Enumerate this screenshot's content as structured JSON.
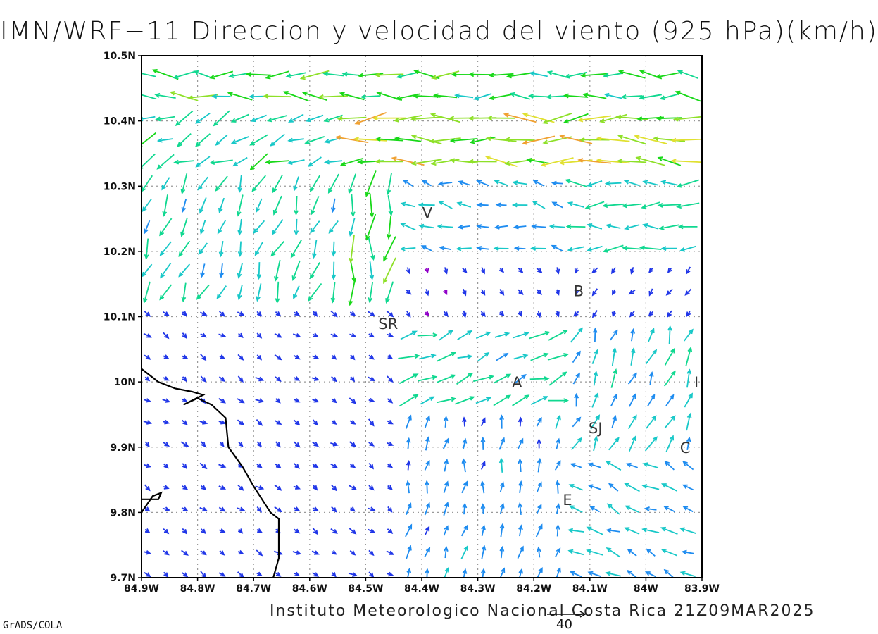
{
  "title": "IMN/WRF−11 Direccion y velocidad del viento (925 hPa)(km/h)",
  "footer": "Instituto Meteorologico Nacional Costa Rica 21Z09MAR2025",
  "software": "GrADS/COLA",
  "reference_vector": {
    "label": "40",
    "speed": 40
  },
  "map": {
    "lon_range": [
      -84.9,
      -83.9
    ],
    "lat_range": [
      9.7,
      10.5
    ],
    "grid": true,
    "lat_labels": [
      "10.5N",
      "10.4N",
      "10.3N",
      "10.2N",
      "10.1N",
      "10N",
      "9.9N",
      "9.8N",
      "9.7N"
    ],
    "lon_labels": [
      "84.9W",
      "84.8W",
      "84.7W",
      "84.6W",
      "84.5W",
      "84.4W",
      "84.3W",
      "84.2W",
      "84.1W",
      "84W",
      "83.9W"
    ],
    "places": [
      {
        "label": "V",
        "lon": -84.39,
        "lat": 10.26
      },
      {
        "label": "B",
        "lon": -84.12,
        "lat": 10.14
      },
      {
        "label": "SR",
        "lon": -84.46,
        "lat": 10.09
      },
      {
        "label": "A",
        "lon": -84.23,
        "lat": 10.0
      },
      {
        "label": "I",
        "lon": -83.91,
        "lat": 10.0
      },
      {
        "label": "SJ",
        "lon": -84.09,
        "lat": 9.93
      },
      {
        "label": "C",
        "lon": -83.93,
        "lat": 9.9
      },
      {
        "label": "E",
        "lon": -84.14,
        "lat": 9.82
      }
    ],
    "coastline": [
      [
        -84.9,
        10.02
      ],
      [
        -84.87,
        10.0
      ],
      [
        -84.84,
        9.99
      ],
      [
        -84.81,
        9.985
      ],
      [
        -84.79,
        9.98
      ],
      [
        -84.825,
        9.965
      ],
      [
        -84.8,
        9.975
      ],
      [
        -84.775,
        9.965
      ],
      [
        -84.75,
        9.945
      ],
      [
        -84.745,
        9.9
      ],
      [
        -84.72,
        9.87
      ],
      [
        -84.7,
        9.84
      ],
      [
        -84.67,
        9.8
      ],
      [
        -84.655,
        9.79
      ],
      [
        -84.655,
        9.73
      ],
      [
        -84.665,
        9.7
      ]
    ],
    "coastline2": [
      [
        -84.9,
        9.8
      ],
      [
        -84.88,
        9.825
      ],
      [
        -84.865,
        9.83
      ],
      [
        -84.87,
        9.82
      ],
      [
        -84.9,
        9.82
      ]
    ]
  },
  "wind": {
    "levels": [
      0,
      5,
      10,
      15,
      20,
      25,
      30,
      35,
      40,
      45
    ],
    "colors": [
      "#9000c8",
      "#2036e8",
      "#1e8cf0",
      "#18c8c8",
      "#10d890",
      "#18d818",
      "#8ee028",
      "#e0e030",
      "#f0a030",
      "#e82060"
    ],
    "regions": [
      {
        "lon": [
          -84.9,
          -83.9
        ],
        "lat": [
          10.43,
          10.5
        ],
        "u": -26,
        "v": 1,
        "note": "north"
      },
      {
        "lon": [
          -84.55,
          -83.9
        ],
        "lat": [
          10.33,
          10.43
        ],
        "u": -34,
        "v": 0
      },
      {
        "lon": [
          -84.9,
          -84.55
        ],
        "lat": [
          10.33,
          10.43
        ],
        "u": -20,
        "v": -9
      },
      {
        "lon": [
          -84.9,
          -84.55
        ],
        "lat": [
          10.12,
          10.33
        ],
        "u": -7,
        "v": -18
      },
      {
        "lon": [
          -84.55,
          -84.45
        ],
        "lat": [
          10.12,
          10.33
        ],
        "u": -3,
        "v": -25
      },
      {
        "lon": [
          -84.45,
          -84.15
        ],
        "lat": [
          10.2,
          10.33
        ],
        "u": -14,
        "v": 3
      },
      {
        "lon": [
          -84.15,
          -83.9
        ],
        "lat": [
          10.2,
          10.33
        ],
        "u": -20,
        "v": 0
      },
      {
        "lon": [
          -84.45,
          -84.15
        ],
        "lat": [
          10.1,
          10.2
        ],
        "u": 3,
        "v": -5
      },
      {
        "lon": [
          -84.15,
          -83.9
        ],
        "lat": [
          10.1,
          10.2
        ],
        "u": -4,
        "v": -6
      },
      {
        "lon": [
          -84.9,
          -84.45
        ],
        "lat": [
          9.7,
          10.12
        ],
        "u": 6,
        "v": -4
      },
      {
        "lon": [
          -84.45,
          -84.15
        ],
        "lat": [
          9.95,
          10.1
        ],
        "u": 18,
        "v": 6
      },
      {
        "lon": [
          -84.15,
          -83.9
        ],
        "lat": [
          9.9,
          10.1
        ],
        "u": 6,
        "v": 16
      },
      {
        "lon": [
          -84.45,
          -84.15
        ],
        "lat": [
          9.7,
          9.95
        ],
        "u": 2,
        "v": 12
      },
      {
        "lon": [
          -84.15,
          -83.9
        ],
        "lat": [
          9.7,
          9.9
        ],
        "u": -14,
        "v": 6
      }
    ]
  }
}
